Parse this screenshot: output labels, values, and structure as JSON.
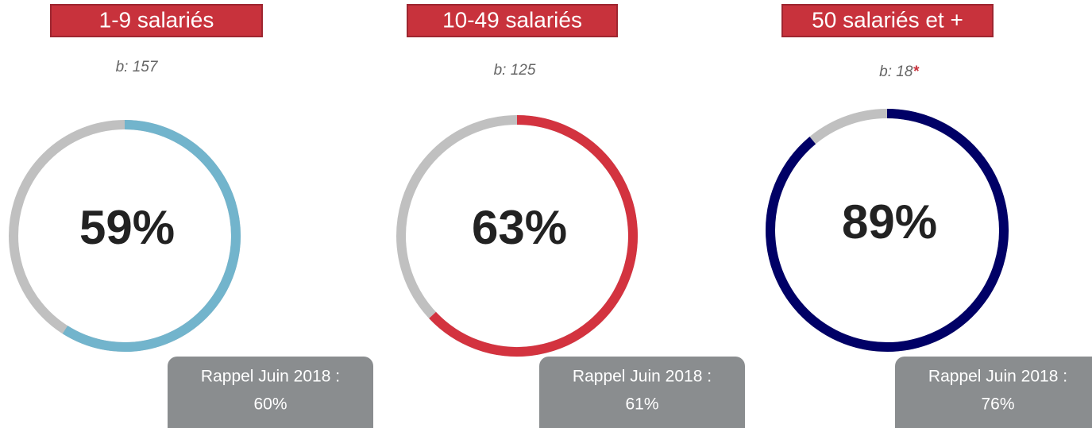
{
  "chart_data": [
    {
      "type": "donut",
      "title": "1-9 salariés",
      "subtitle": "b: 157",
      "values": [
        59
      ],
      "value_labels": [
        "59%"
      ],
      "max": 100,
      "color": "#72b4cc",
      "track_color": "#c0c0c0",
      "annotation": [
        "Rappel Juin 2018 :",
        "60%"
      ]
    },
    {
      "type": "donut",
      "title": "10-49 salariés",
      "subtitle": "b: 125",
      "values": [
        63
      ],
      "value_labels": [
        "63%"
      ],
      "max": 100,
      "color": "#d3333f",
      "track_color": "#c0c0c0",
      "annotation": [
        "Rappel Juin 2018 :",
        "61%"
      ]
    },
    {
      "type": "donut",
      "title": "50 salariés et +",
      "subtitle": "b: 18",
      "subtitle_mark": "*",
      "values": [
        89
      ],
      "value_labels": [
        "89%"
      ],
      "max": 100,
      "color": "#000066",
      "track_color": "#c0c0c0",
      "annotation": [
        "Rappel Juin 2018 :",
        "76%"
      ]
    }
  ]
}
